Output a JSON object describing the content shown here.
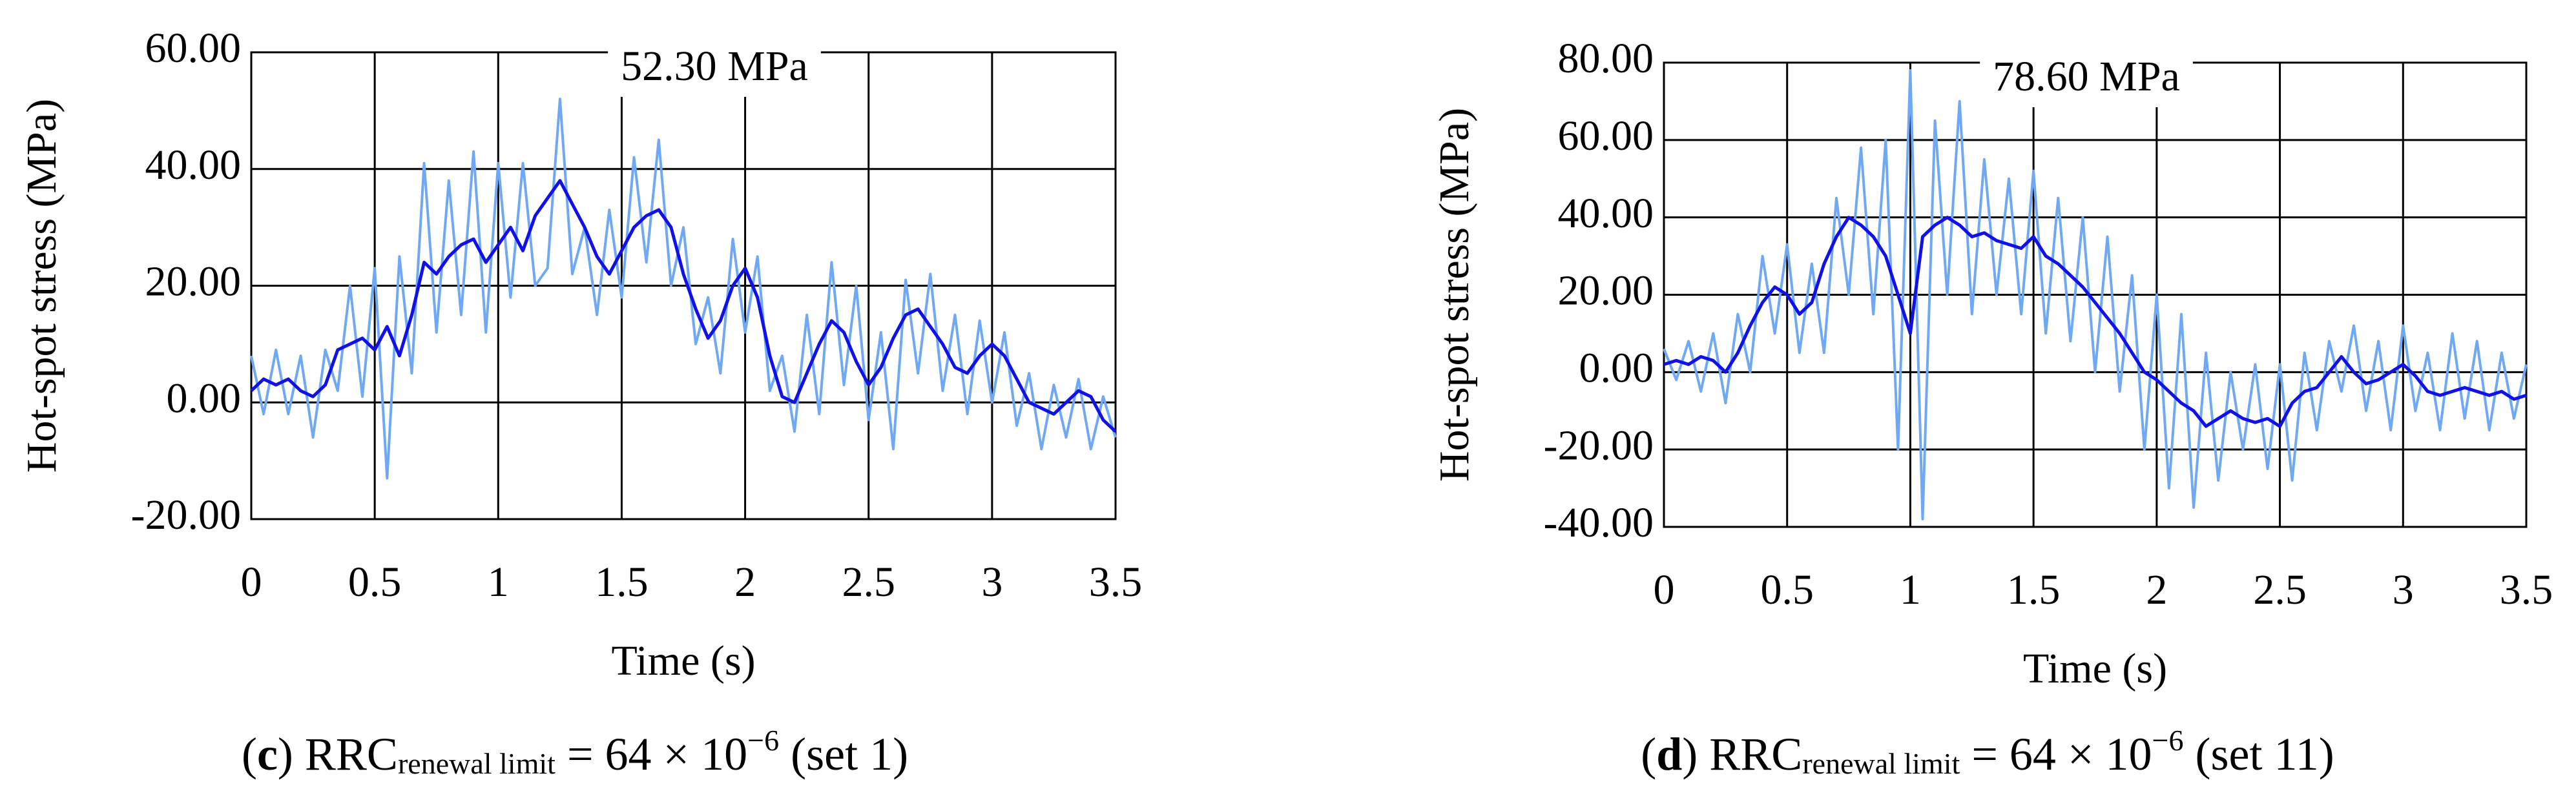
{
  "chart_data": [
    {
      "type": "line",
      "annotation": "52.30 MPa",
      "xlabel": "Time (s)",
      "ylabel": "Hot-spot stress (MPa)",
      "caption": [
        {
          "text": "(",
          "style": "normal"
        },
        {
          "text": "c",
          "style": "bold"
        },
        {
          "text": ") RRC",
          "style": "normal"
        },
        {
          "text": "renewal limit",
          "style": "sub"
        },
        {
          "text": " = 64 × 10",
          "style": "normal"
        },
        {
          "text": "−6",
          "style": "sup"
        },
        {
          "text": " (set 1)",
          "style": "normal"
        }
      ],
      "x": [
        0,
        0.05,
        0.1,
        0.15,
        0.2,
        0.25,
        0.3,
        0.35,
        0.4,
        0.45,
        0.5,
        0.55,
        0.6,
        0.65,
        0.7,
        0.75,
        0.8,
        0.85,
        0.9,
        0.95,
        1,
        1.05,
        1.1,
        1.15,
        1.2,
        1.25,
        1.3,
        1.35,
        1.4,
        1.45,
        1.5,
        1.55,
        1.6,
        1.65,
        1.7,
        1.75,
        1.8,
        1.85,
        1.9,
        1.95,
        2,
        2.05,
        2.1,
        2.15,
        2.2,
        2.25,
        2.3,
        2.35,
        2.4,
        2.45,
        2.5,
        2.55,
        2.6,
        2.65,
        2.7,
        2.75,
        2.8,
        2.85,
        2.9,
        2.95,
        3,
        3.05,
        3.1,
        3.15,
        3.2,
        3.25,
        3.3,
        3.35,
        3.4,
        3.45,
        3.5
      ],
      "series": [
        {
          "color": "#6fa8f5",
          "values": [
            8,
            -2,
            9,
            -2,
            8,
            -6,
            9,
            2,
            20,
            1,
            23,
            -13,
            25,
            5,
            41,
            12,
            38,
            15,
            43,
            12,
            41,
            18,
            41,
            20,
            23,
            52,
            22,
            30,
            15,
            33,
            18,
            42,
            24,
            45,
            20,
            30,
            10,
            18,
            5,
            28,
            12,
            25,
            2,
            8,
            -5,
            15,
            -2,
            24,
            3,
            20,
            -3,
            12,
            -8,
            21,
            5,
            22,
            2,
            15,
            -2,
            14,
            0,
            12,
            -4,
            5,
            -8,
            3,
            -6,
            4,
            -8,
            1,
            -6
          ]
        },
        {
          "color": "#1010e8",
          "values": [
            2,
            4,
            3,
            4,
            2,
            1,
            3,
            9,
            10,
            11,
            9,
            13,
            8,
            15,
            24,
            22,
            25,
            27,
            28,
            24,
            27,
            30,
            26,
            32,
            35,
            38,
            34,
            30,
            25,
            22,
            26,
            30,
            32,
            33,
            30,
            22,
            16,
            11,
            14,
            20,
            23,
            18,
            8,
            1,
            0,
            5,
            10,
            14,
            12,
            7,
            3,
            6,
            11,
            15,
            16,
            13,
            10,
            6,
            5,
            8,
            10,
            8,
            4,
            0,
            -1,
            -2,
            0,
            2,
            1,
            -3,
            -5
          ]
        }
      ],
      "xlim": [
        0,
        3.5
      ],
      "xticks": [
        0,
        0.5,
        1,
        1.5,
        2,
        2.5,
        3,
        3.5
      ],
      "ylim": [
        -20,
        60
      ],
      "yticks": [
        {
          "value": -20,
          "label": "-20.00"
        },
        {
          "value": 0,
          "label": "0.00"
        },
        {
          "value": 20,
          "label": "20.00"
        },
        {
          "value": 40,
          "label": "40.00"
        },
        {
          "value": 60,
          "label": "60.00"
        }
      ],
      "grid": true
    },
    {
      "type": "line",
      "annotation": "78.60 MPa",
      "xlabel": "Time (s)",
      "ylabel": "Hot-spot stress (MPa)",
      "caption": [
        {
          "text": "(",
          "style": "normal"
        },
        {
          "text": "d",
          "style": "bold"
        },
        {
          "text": ") RRC",
          "style": "normal"
        },
        {
          "text": "renewal limit",
          "style": "sub"
        },
        {
          "text": " = 64 × 10",
          "style": "normal"
        },
        {
          "text": "−6",
          "style": "sup"
        },
        {
          "text": " (set 11)",
          "style": "normal"
        }
      ],
      "x": [
        0,
        0.05,
        0.1,
        0.15,
        0.2,
        0.25,
        0.3,
        0.35,
        0.4,
        0.45,
        0.5,
        0.55,
        0.6,
        0.65,
        0.7,
        0.75,
        0.8,
        0.85,
        0.9,
        0.95,
        1,
        1.05,
        1.1,
        1.15,
        1.2,
        1.25,
        1.3,
        1.35,
        1.4,
        1.45,
        1.5,
        1.55,
        1.6,
        1.65,
        1.7,
        1.75,
        1.8,
        1.85,
        1.9,
        1.95,
        2,
        2.05,
        2.1,
        2.15,
        2.2,
        2.25,
        2.3,
        2.35,
        2.4,
        2.45,
        2.5,
        2.55,
        2.6,
        2.65,
        2.7,
        2.75,
        2.8,
        2.85,
        2.9,
        2.95,
        3,
        3.05,
        3.1,
        3.15,
        3.2,
        3.25,
        3.3,
        3.35,
        3.4,
        3.45,
        3.5
      ],
      "series": [
        {
          "color": "#6fa8f5",
          "values": [
            6,
            -2,
            8,
            -5,
            10,
            -8,
            15,
            0,
            30,
            10,
            33,
            5,
            28,
            5,
            45,
            20,
            58,
            15,
            60,
            -20,
            78,
            -38,
            65,
            20,
            70,
            15,
            55,
            20,
            50,
            15,
            52,
            10,
            45,
            8,
            40,
            0,
            35,
            -5,
            25,
            -20,
            20,
            -30,
            15,
            -35,
            5,
            -28,
            0,
            -20,
            2,
            -25,
            2,
            -28,
            5,
            -15,
            8,
            -5,
            12,
            -10,
            8,
            -15,
            12,
            -10,
            5,
            -15,
            10,
            -12,
            8,
            -15,
            5,
            -12,
            2
          ]
        },
        {
          "color": "#1010e8",
          "values": [
            2,
            3,
            2,
            4,
            3,
            0,
            5,
            12,
            18,
            22,
            20,
            15,
            18,
            28,
            35,
            40,
            38,
            35,
            30,
            20,
            10,
            35,
            38,
            40,
            38,
            35,
            36,
            34,
            33,
            32,
            35,
            30,
            28,
            25,
            22,
            18,
            14,
            10,
            5,
            0,
            -2,
            -5,
            -8,
            -10,
            -14,
            -12,
            -10,
            -12,
            -13,
            -12,
            -14,
            -8,
            -5,
            -4,
            0,
            4,
            0,
            -3,
            -2,
            0,
            2,
            -1,
            -5,
            -6,
            -5,
            -4,
            -5,
            -6,
            -5,
            -7,
            -6
          ]
        }
      ],
      "xlim": [
        0,
        3.5
      ],
      "xticks": [
        0,
        0.5,
        1,
        1.5,
        2,
        2.5,
        3,
        3.5
      ],
      "ylim": [
        -40,
        80
      ],
      "yticks": [
        {
          "value": -40,
          "label": "-40.00"
        },
        {
          "value": -20,
          "label": "-20.00"
        },
        {
          "value": 0,
          "label": "0.00"
        },
        {
          "value": 20,
          "label": "20.00"
        },
        {
          "value": 40,
          "label": "40.00"
        },
        {
          "value": 60,
          "label": "60.00"
        },
        {
          "value": 80,
          "label": "80.00"
        }
      ],
      "grid": true
    }
  ]
}
